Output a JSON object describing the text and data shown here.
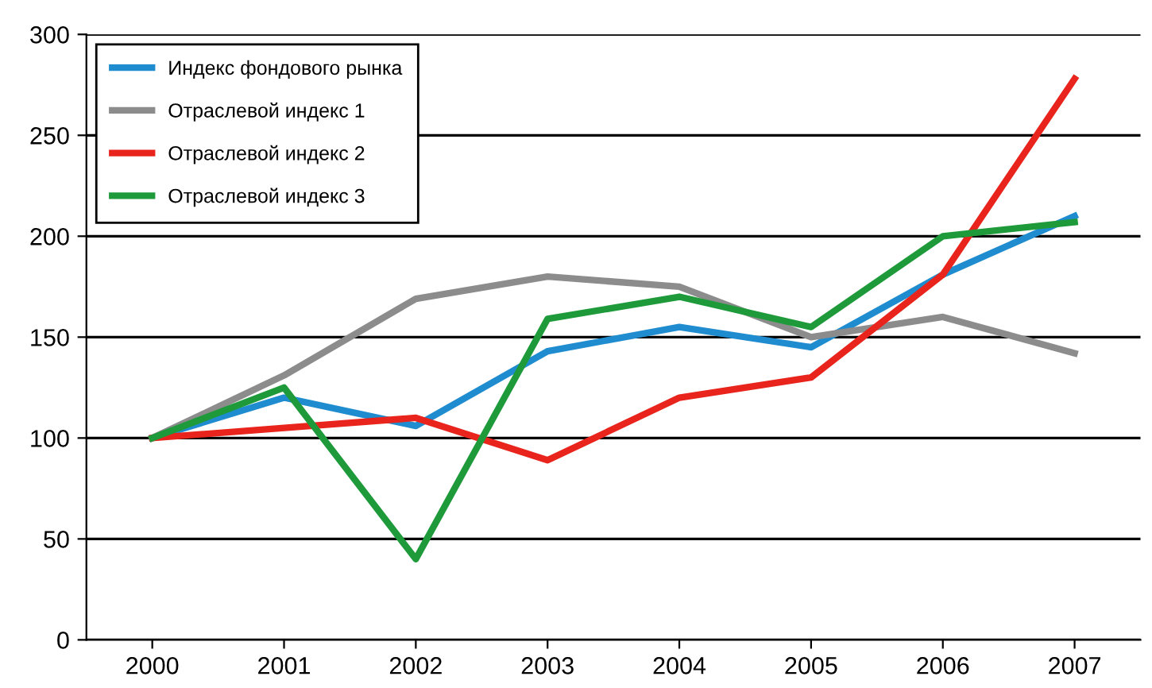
{
  "chart_data": {
    "type": "line",
    "categories": [
      "2000",
      "2001",
      "2002",
      "2003",
      "2004",
      "2005",
      "2006",
      "2007"
    ],
    "series": [
      {
        "name": "Индекс фондового рынка",
        "color": "#1f8ccf",
        "values": [
          100,
          120,
          106,
          143,
          155,
          145,
          181,
          210
        ]
      },
      {
        "name": "Отраслевой индекс 1",
        "color": "#8c8c8c",
        "values": [
          100,
          131,
          169,
          180,
          175,
          150,
          160,
          142
        ]
      },
      {
        "name": "Отраслевой индекс 2",
        "color": "#e8241c",
        "values": [
          100,
          105,
          110,
          89,
          120,
          130,
          181,
          278
        ]
      },
      {
        "name": "Отраслевой индекс 3",
        "color": "#1e9a3a",
        "values": [
          100,
          125,
          40,
          159,
          170,
          155,
          200,
          207
        ]
      }
    ],
    "ylim": [
      0,
      300
    ],
    "yticks": [
      0,
      50,
      100,
      150,
      200,
      250,
      300
    ],
    "grid": "y",
    "legend": "top left",
    "marker": "none",
    "line_style": "solid"
  }
}
